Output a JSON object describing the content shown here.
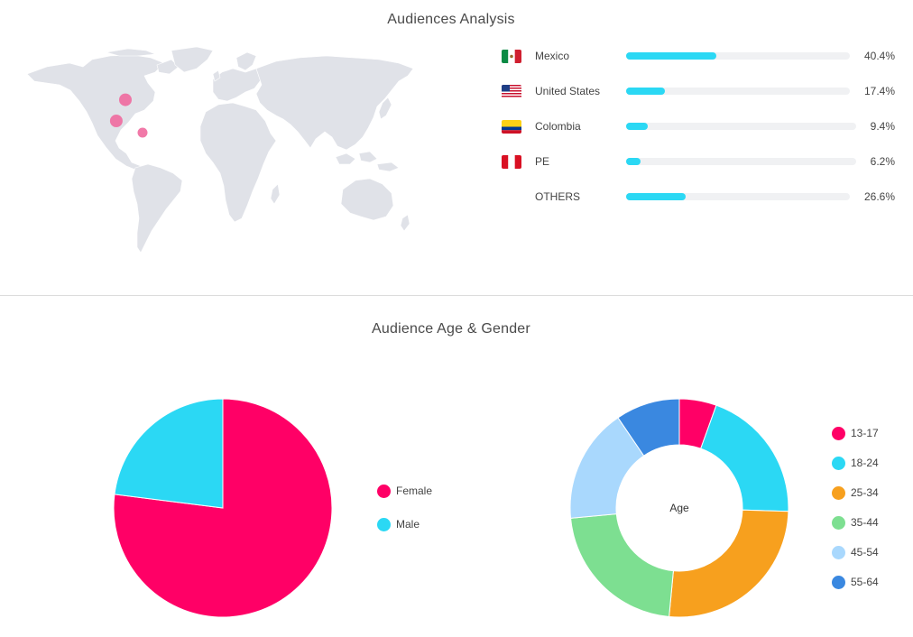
{
  "sections": {
    "audiences_title": "Audiences Analysis",
    "age_gender_title": "Audience Age & Gender"
  },
  "countries": [
    {
      "name": "Mexico",
      "percent_label": "40.4%",
      "value": 40.4,
      "flag": "mexico-flag-icon"
    },
    {
      "name": "United States",
      "percent_label": "17.4%",
      "value": 17.4,
      "flag": "usa-flag-icon"
    },
    {
      "name": "Colombia",
      "percent_label": "9.4%",
      "value": 9.4,
      "flag": "colombia-flag-icon"
    },
    {
      "name": "PE",
      "percent_label": "6.2%",
      "value": 6.2,
      "flag": "peru-flag-icon"
    },
    {
      "name": "OTHERS",
      "percent_label": "26.6%",
      "value": 26.6,
      "flag": ""
    }
  ],
  "map_markers": [
    {
      "place": "United States",
      "lat": 38,
      "lon": -92
    },
    {
      "place": "Mexico",
      "lat": 20,
      "lon": -101
    },
    {
      "place": "Colombia",
      "lat": 10,
      "lon": -75
    }
  ],
  "colors": {
    "accent_bar": "#2bd8f4",
    "bar_track": "#f0f1f3",
    "map_land": "#e0e2e8",
    "marker": "#f06a9f"
  },
  "chart_data": [
    {
      "type": "pie",
      "categories": [
        "Female",
        "Male"
      ],
      "values": [
        77,
        23
      ],
      "colors": [
        "#ff0066",
        "#2bd8f4"
      ],
      "legend": "right"
    },
    {
      "type": "pie",
      "donut": true,
      "center_label": "Age",
      "categories": [
        "13-17",
        "18-24",
        "25-34",
        "35-44",
        "45-54",
        "55-64"
      ],
      "values": [
        5.5,
        20,
        26,
        22,
        17,
        9.5
      ],
      "colors": [
        "#ff0066",
        "#2bd8f4",
        "#f7a01e",
        "#7ddf91",
        "#a9d8fd",
        "#3a88e0"
      ],
      "legend": "right"
    }
  ]
}
